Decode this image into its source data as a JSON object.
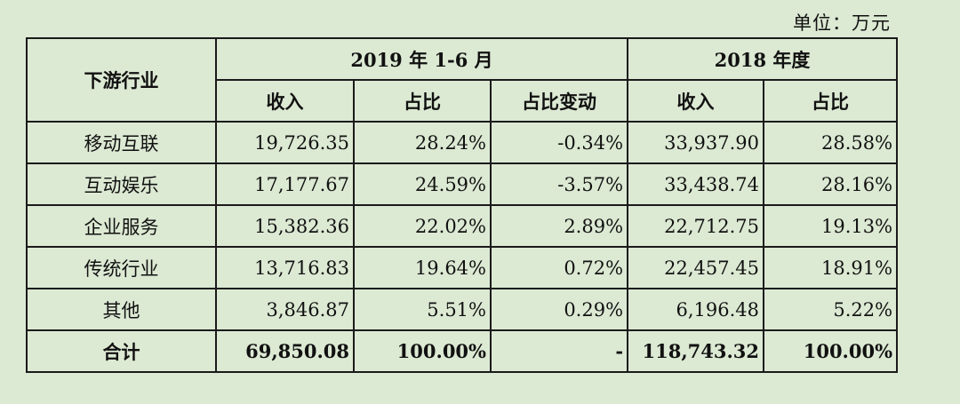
{
  "unit_label": "单位：万元",
  "table": {
    "industry_header": "下游行业",
    "period1": "2019 年 1-6 月",
    "period2": "2018 年度",
    "sub_headers": [
      "收入",
      "占比",
      "占比变动",
      "收入",
      "占比"
    ],
    "rows": [
      {
        "name": "移动互联",
        "cells": [
          "19,726.35",
          "28.24%",
          "-0.34%",
          "33,937.90",
          "28.58%"
        ]
      },
      {
        "name": "互动娱乐",
        "cells": [
          "17,177.67",
          "24.59%",
          "-3.57%",
          "33,438.74",
          "28.16%"
        ]
      },
      {
        "name": "企业服务",
        "cells": [
          "15,382.36",
          "22.02%",
          "2.89%",
          "22,712.75",
          "19.13%"
        ]
      },
      {
        "name": "传统行业",
        "cells": [
          "13,716.83",
          "19.64%",
          "0.72%",
          "22,457.45",
          "18.91%"
        ]
      },
      {
        "name": "其他",
        "cells": [
          "3,846.87",
          "5.51%",
          "0.29%",
          "6,196.48",
          "5.22%"
        ]
      }
    ],
    "total": {
      "name": "合计",
      "cells": [
        "69,850.08",
        "100.00%",
        "-",
        "118,743.32",
        "100.00%"
      ]
    }
  }
}
